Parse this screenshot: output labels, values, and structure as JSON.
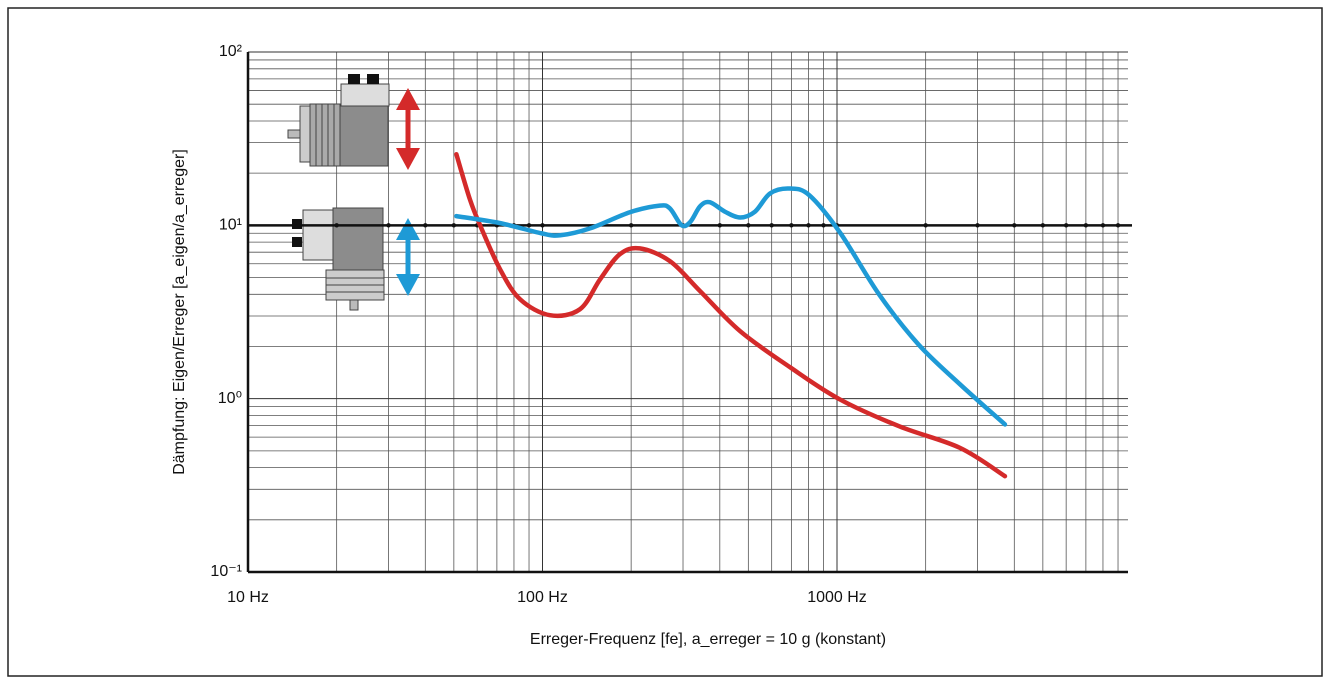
{
  "chart_data": {
    "type": "line",
    "x_label": "Erreger-Frequenz [fe], a_erreger = 10 g (konstant)",
    "y_label": "Dämpfung: Eigen/Erreger [a_eigen/a_erreger]",
    "log_x": true,
    "log_y": true,
    "grid": true,
    "xlim": [
      10,
      10000
    ],
    "xticks": [
      {
        "value": 10,
        "label": "10 Hz"
      },
      {
        "value": 100,
        "label": "100 Hz"
      },
      {
        "value": 1000,
        "label": "1000 Hz"
      }
    ],
    "ylim": [
      0.1,
      100
    ],
    "yticks": [
      {
        "value": 0.1,
        "label": "10⁻¹"
      },
      {
        "value": 1,
        "label": "10⁰"
      },
      {
        "value": 10,
        "label": "10¹"
      },
      {
        "value": 100,
        "label": "10²"
      }
    ],
    "reference_line": 10,
    "series": [
      {
        "color": "#d42a2a",
        "x": [
          51,
          56.7,
          61.4,
          71.8,
          84,
          106,
          134,
          157,
          183,
          214,
          271,
          343,
          469,
          692,
          1023,
          1636,
          2616,
          3718
        ],
        "values": [
          25.7,
          14.1,
          10,
          5.57,
          3.74,
          3.03,
          3.28,
          4.89,
          6.81,
          7.36,
          6.21,
          4.17,
          2.45,
          1.52,
          0.99,
          0.69,
          0.52,
          0.357
        ]
      },
      {
        "color": "#1e9ad6",
        "x": [
          51,
          71.8,
          99,
          115,
          145,
          198,
          250,
          271,
          297,
          318,
          343,
          370,
          416,
          469,
          527,
          593,
          692,
          806,
          1023,
          1389,
          1888,
          2616,
          3718
        ],
        "values": [
          11.3,
          10.3,
          9.0,
          8.76,
          9.6,
          11.9,
          13.0,
          12.5,
          10,
          10.5,
          12.9,
          13.6,
          12.0,
          11.1,
          12.0,
          15.3,
          16.3,
          14.9,
          9.1,
          4.0,
          2.06,
          1.21,
          0.71
        ]
      }
    ]
  }
}
